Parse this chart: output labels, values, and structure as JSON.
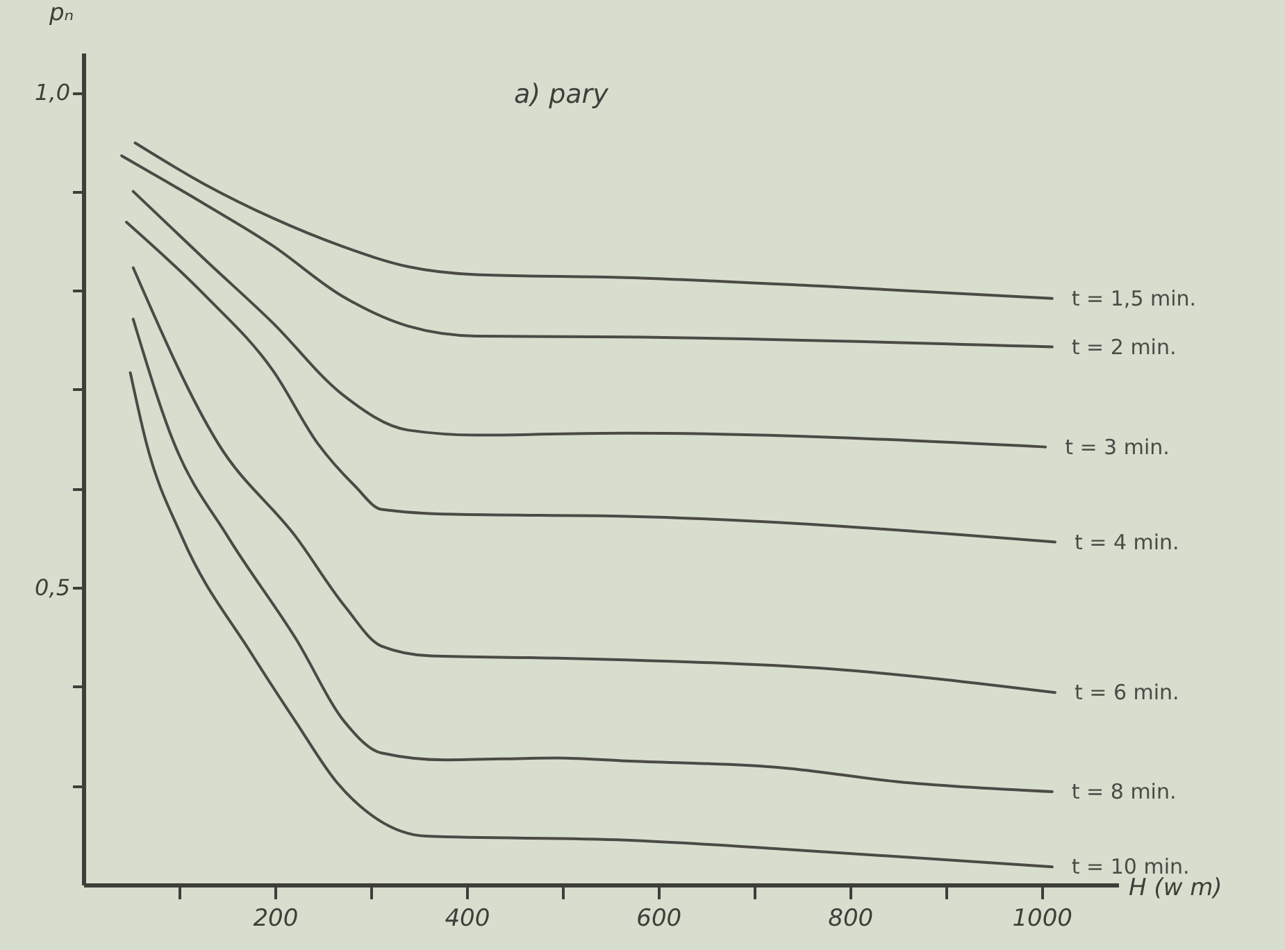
{
  "chart_data": {
    "type": "line",
    "title": "a) pary",
    "xlabel": "H (w m)",
    "ylabel": "pₙ",
    "xlim": [
      0,
      1080
    ],
    "ylim": [
      0.2,
      1.04
    ],
    "xticks": [
      {
        "value": 100,
        "label": null
      },
      200,
      {
        "value": 300,
        "label": null
      },
      400,
      {
        "value": 500,
        "label": null
      },
      600,
      {
        "value": 700,
        "label": null
      },
      800,
      {
        "value": 900,
        "label": null
      },
      1000
    ],
    "yticks": [
      {
        "value": 0.3,
        "label": null
      },
      {
        "value": 0.4,
        "label": null
      },
      {
        "value": 0.5,
        "label": "0,5"
      },
      {
        "value": 0.6,
        "label": null
      },
      {
        "value": 0.7,
        "label": null
      },
      {
        "value": 0.8,
        "label": null
      },
      {
        "value": 0.9,
        "label": null
      },
      {
        "value": 1.0,
        "label": "1,0"
      }
    ],
    "grid": false,
    "legend": false,
    "marker": "none",
    "line_style": "solid",
    "series": [
      {
        "name": "t = 1,5 min.",
        "color": "#4a4a46",
        "x": [
          54,
          127,
          198,
          269,
          339,
          410,
          566,
          778,
          1011
        ],
        "values": [
          0.949,
          0.907,
          0.873,
          0.845,
          0.824,
          0.816,
          0.813,
          0.804,
          0.792
        ]
      },
      {
        "name": "t = 2 min.",
        "color": "#4a4a46",
        "x": [
          40,
          127,
          198,
          269,
          339,
          410,
          566,
          1011
        ],
        "values": [
          0.936,
          0.887,
          0.845,
          0.795,
          0.764,
          0.754,
          0.753,
          0.743
        ]
      },
      {
        "name": "t = 3 min.",
        "color": "#4a4a46",
        "x": [
          52,
          127,
          198,
          269,
          339,
          410,
          566,
          1004
        ],
        "values": [
          0.9,
          0.831,
          0.767,
          0.696,
          0.659,
          0.654,
          0.656,
          0.642
        ]
      },
      {
        "name": "t = 4 min.",
        "color": "#4a4a46",
        "x": [
          45,
          127,
          198,
          245,
          283,
          311,
          386,
          566,
          1014
        ],
        "values": [
          0.869,
          0.795,
          0.719,
          0.645,
          0.603,
          0.579,
          0.574,
          0.572,
          0.546
        ]
      },
      {
        "name": "t = 6 min.",
        "color": "#4a4a46",
        "x": [
          52,
          141,
          222,
          273,
          311,
          363,
          481,
          566,
          778,
          1014
        ],
        "values": [
          0.823,
          0.645,
          0.551,
          0.481,
          0.441,
          0.431,
          0.429,
          0.427,
          0.418,
          0.394
        ]
      },
      {
        "name": "t = 8 min.",
        "color": "#4a4a46",
        "x": [
          52,
          95,
          151,
          222,
          273,
          311,
          377,
          495,
          566,
          730,
          850,
          1011
        ],
        "values": [
          0.771,
          0.645,
          0.551,
          0.448,
          0.364,
          0.333,
          0.326,
          0.328,
          0.325,
          0.318,
          0.304,
          0.294
        ]
      },
      {
        "name": "t = 10 min.",
        "color": "#4a4a46",
        "x": [
          49,
          66,
          103,
          175,
          222,
          264,
          307,
          358,
          566,
          730,
          1011
        ],
        "values": [
          0.717,
          0.645,
          0.551,
          0.434,
          0.364,
          0.304,
          0.266,
          0.249,
          0.245,
          0.236,
          0.218
        ]
      }
    ]
  }
}
